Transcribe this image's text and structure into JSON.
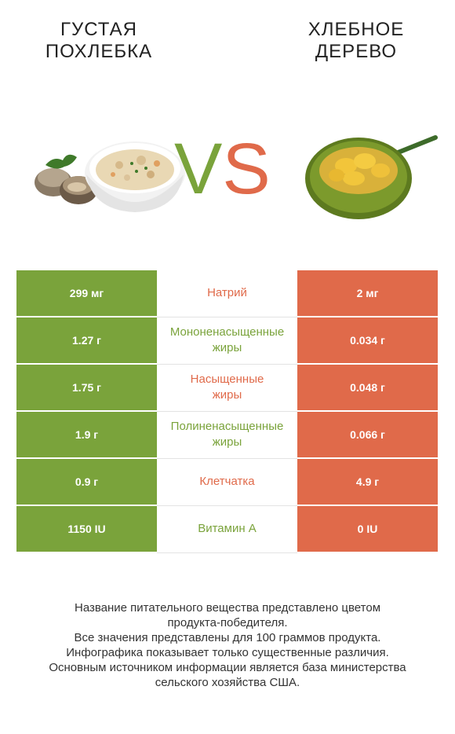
{
  "header": {
    "left_title": "ГУСТАЯ\nПОХЛЕБКА",
    "right_title": "ХЛЕБНОЕ\nДЕРЕВО",
    "vs_v": "V",
    "vs_s": "S"
  },
  "colors": {
    "left_accent": "#7aa33b",
    "right_accent": "#e06a4a"
  },
  "rows": [
    {
      "left": "299 мг",
      "nutrient": "Натрий",
      "right": "2 мг",
      "winner": "right"
    },
    {
      "left": "1.27 г",
      "nutrient": "Мононенасыщенные\nжиры",
      "right": "0.034 г",
      "winner": "left"
    },
    {
      "left": "1.75 г",
      "nutrient": "Насыщенные\nжиры",
      "right": "0.048 г",
      "winner": "right"
    },
    {
      "left": "1.9 г",
      "nutrient": "Полиненасыщенные\nжиры",
      "right": "0.066 г",
      "winner": "left"
    },
    {
      "left": "0.9 г",
      "nutrient": "Клетчатка",
      "right": "4.9 г",
      "winner": "right"
    },
    {
      "left": "1150 IU",
      "nutrient": "Витамин A",
      "right": "0 IU",
      "winner": "left"
    }
  ],
  "footer": {
    "line1": "Название питательного вещества представлено цветом",
    "line2": "продукта-победителя.",
    "line3": "Все значения представлены для 100 граммов продукта.",
    "line4": "Инфографика показывает только существенные различия.",
    "line5": "Основным источником информации является база министерства",
    "line6": "сельского хозяйства США."
  }
}
